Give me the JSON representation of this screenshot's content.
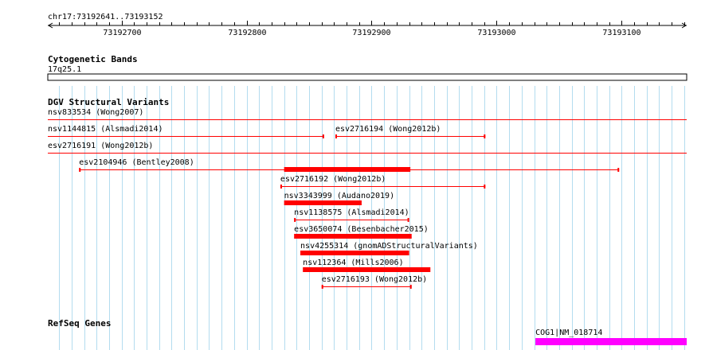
{
  "coord_label": "chr17:73192641..73193152",
  "ruler": {
    "start": 73192641,
    "end": 73193152,
    "ticks": [
      {
        "pos": 73192700,
        "label": "73192700"
      },
      {
        "pos": 73192800,
        "label": "73192800"
      },
      {
        "pos": 73192900,
        "label": "73192900"
      },
      {
        "pos": 73193000,
        "label": "73193000"
      },
      {
        "pos": 73193100,
        "label": "73193100"
      }
    ]
  },
  "cytoband": {
    "header": "Cytogenetic Bands",
    "band": "17q25.1"
  },
  "dgv": {
    "header": "DGV Structural Variants",
    "color": "#ff0000",
    "features": [
      {
        "label": "nsv833534 (Wong2007)",
        "start": 73192641,
        "end": 73193152,
        "style": "line"
      },
      {
        "label": "nsv1144815 (Alsmadi2014)",
        "start": 73192641,
        "end": 73192862,
        "style": "line"
      },
      {
        "label": "esv2716194 (Wong2012b)",
        "start": 73192871,
        "end": 73192991,
        "style": "line"
      },
      {
        "label": "esv2716191 (Wong2012b)",
        "start": 73192641,
        "end": 73193152,
        "style": "line"
      },
      {
        "label": "esv2104946 (Bentley2008)",
        "start": 73192666,
        "end": 73193098,
        "style": "line",
        "thick_start": 73192830,
        "thick_end": 73192931
      },
      {
        "label": "esv2716192 (Wong2012b)",
        "start": 73192827,
        "end": 73192991,
        "style": "line"
      },
      {
        "label": "nsv3343999 (Audano2019)",
        "start": 73192830,
        "end": 73192892,
        "style": "thick"
      },
      {
        "label": "nsv1138575 (Alsmadi2014)",
        "start": 73192838,
        "end": 73192930,
        "style": "line"
      },
      {
        "label": "esv3650074 (Besenbacher2015)",
        "start": 73192838,
        "end": 73192932,
        "style": "thick"
      },
      {
        "label": "nsv4255314 (gnomADStructuralVariants)",
        "start": 73192843,
        "end": 73192930,
        "style": "thick"
      },
      {
        "label": "nsv112364 (Mills2006)",
        "start": 73192845,
        "end": 73192947,
        "style": "thick"
      },
      {
        "label": "esv2716193 (Wong2012b)",
        "start": 73192860,
        "end": 73192932,
        "style": "line"
      }
    ]
  },
  "refseq": {
    "header": "RefSeq Genes",
    "color": "#ff00ff",
    "genes": [
      {
        "label": "COG1|NM_018714",
        "start": 73193031,
        "end": 73193152
      }
    ]
  }
}
